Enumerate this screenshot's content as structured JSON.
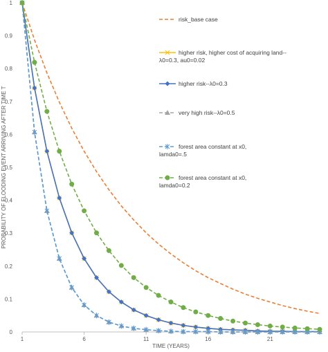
{
  "chart_data": {
    "type": "line",
    "title": "",
    "xlabel": "TIME (YEARS)",
    "ylabel": "PROBABILITY OF FLOODING EVENT ARRIVING AFTER TIME T",
    "xlim": [
      1,
      25
    ],
    "ylim": [
      0,
      1
    ],
    "x_ticks": [
      1,
      6,
      11,
      16,
      21
    ],
    "y_ticks": [
      0,
      0.1,
      0.2,
      0.3,
      0.4,
      0.5,
      0.6,
      0.7,
      0.8,
      0.9,
      1
    ],
    "grid": false,
    "legend_placement": "right-inside",
    "x": [
      1,
      2,
      3,
      4,
      5,
      6,
      7,
      8,
      9,
      10,
      11,
      12,
      13,
      14,
      15,
      16,
      17,
      18,
      19,
      20,
      21,
      22,
      23,
      24,
      25
    ],
    "series": [
      {
        "name": "risk_base case",
        "color": "#ED7D31",
        "dash": "dash",
        "marker": "none",
        "values": [
          1.0,
          0.887,
          0.787,
          0.698,
          0.619,
          0.549,
          0.487,
          0.432,
          0.383,
          0.34,
          0.301,
          0.267,
          0.237,
          0.21,
          0.186,
          0.165,
          0.147,
          0.13,
          0.115,
          0.102,
          0.091,
          0.08,
          0.071,
          0.063,
          0.056
        ]
      },
      {
        "name": "higher risk, higher cost of acquiring land--λ0=0.3, au0=0.02",
        "color": "#FFC000",
        "dash": "solid",
        "marker": "x",
        "values": [
          1.0,
          0.741,
          0.549,
          0.407,
          0.301,
          0.223,
          0.165,
          0.122,
          0.091,
          0.067,
          0.05,
          0.037,
          0.027,
          0.02,
          0.015,
          0.011,
          0.008,
          0.006,
          0.005,
          0.003,
          0.002,
          0.002,
          0.001,
          0.001,
          0.001
        ]
      },
      {
        "name": "higher risk--λ0=0.3",
        "color": "#4472C4",
        "dash": "solid",
        "marker": "diamond",
        "values": [
          1.0,
          0.741,
          0.549,
          0.407,
          0.301,
          0.223,
          0.165,
          0.122,
          0.091,
          0.067,
          0.05,
          0.037,
          0.027,
          0.02,
          0.015,
          0.011,
          0.008,
          0.006,
          0.005,
          0.003,
          0.002,
          0.002,
          0.001,
          0.001,
          0.001
        ]
      },
      {
        "name": "very high risk--λ0=0.5",
        "color": "#A5A5A5",
        "dash": "dash",
        "marker": "triangle",
        "values": [
          1.0,
          0.607,
          0.368,
          0.223,
          0.135,
          0.082,
          0.05,
          0.03,
          0.018,
          0.011,
          0.007,
          0.004,
          0.002,
          0.001,
          0.001,
          0.001,
          0.0,
          0.0,
          0.0,
          0.0,
          0.0,
          0.0,
          0.0,
          0.0,
          0.0
        ]
      },
      {
        "name": "forest area constant at x0, lamda0=.5",
        "color": "#5B9BD5",
        "dash": "dash",
        "marker": "asterisk",
        "values": [
          1.0,
          0.607,
          0.368,
          0.223,
          0.135,
          0.082,
          0.05,
          0.03,
          0.018,
          0.011,
          0.007,
          0.004,
          0.002,
          0.001,
          0.001,
          0.001,
          0.0,
          0.0,
          0.0,
          0.0,
          0.0,
          0.0,
          0.0,
          0.0,
          0.0
        ]
      },
      {
        "name": "forest area constant at x0, lamda0=0.2",
        "color": "#70AD47",
        "dash": "dash",
        "marker": "circle",
        "values": [
          1.0,
          0.819,
          0.67,
          0.549,
          0.449,
          0.368,
          0.301,
          0.247,
          0.202,
          0.165,
          0.135,
          0.111,
          0.091,
          0.074,
          0.061,
          0.05,
          0.041,
          0.033,
          0.027,
          0.022,
          0.018,
          0.015,
          0.012,
          0.01,
          0.008
        ]
      }
    ]
  }
}
